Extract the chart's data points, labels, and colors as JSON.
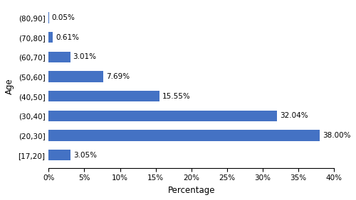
{
  "categories": [
    "[17,20]",
    "(20,30]",
    "(30,40]",
    "(40,50]",
    "(50,60]",
    "(60,70]",
    "(70,80]",
    "(80,90]"
  ],
  "values": [
    3.05,
    38.0,
    32.04,
    15.55,
    7.69,
    3.01,
    0.61,
    0.05
  ],
  "labels": [
    "3.05%",
    "38.00%",
    "32.04%",
    "15.55%",
    "7.69%",
    "3.01%",
    "0.61%",
    "0.05%"
  ],
  "bar_color": "#4472C4",
  "xlabel": "Percentage",
  "ylabel": "Age",
  "xlim": [
    0,
    40
  ],
  "xticks": [
    0,
    5,
    10,
    15,
    20,
    25,
    30,
    35,
    40
  ],
  "xtick_labels": [
    "0%",
    "5%",
    "10%",
    "15%",
    "20%",
    "25%",
    "30%",
    "35%",
    "40%"
  ],
  "label_fontsize": 7.5,
  "axis_label_fontsize": 8.5,
  "tick_fontsize": 7.5
}
